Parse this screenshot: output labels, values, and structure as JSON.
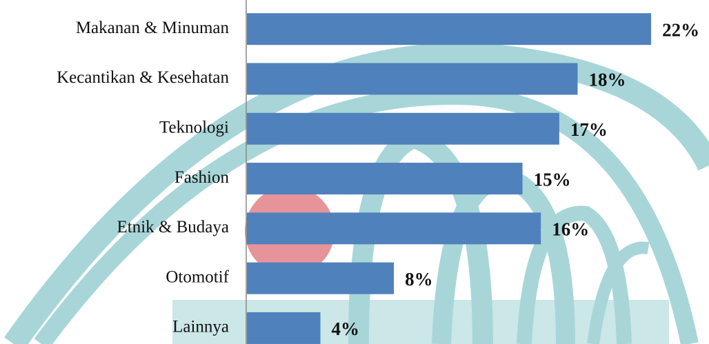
{
  "chart_data": {
    "type": "bar",
    "orientation": "horizontal",
    "categories": [
      "Makanan & Minuman",
      "Kecantikan & Kesehatan",
      "Teknologi",
      "Fashion",
      "Etnik & Budaya",
      "Otomotif",
      "Lainnya"
    ],
    "values": [
      22,
      18,
      17,
      15,
      16,
      8,
      4
    ],
    "value_labels": [
      "22%",
      "18%",
      "17%",
      "15%",
      "16%",
      "8%",
      "4%"
    ],
    "color": "#4f81bd"
  }
}
